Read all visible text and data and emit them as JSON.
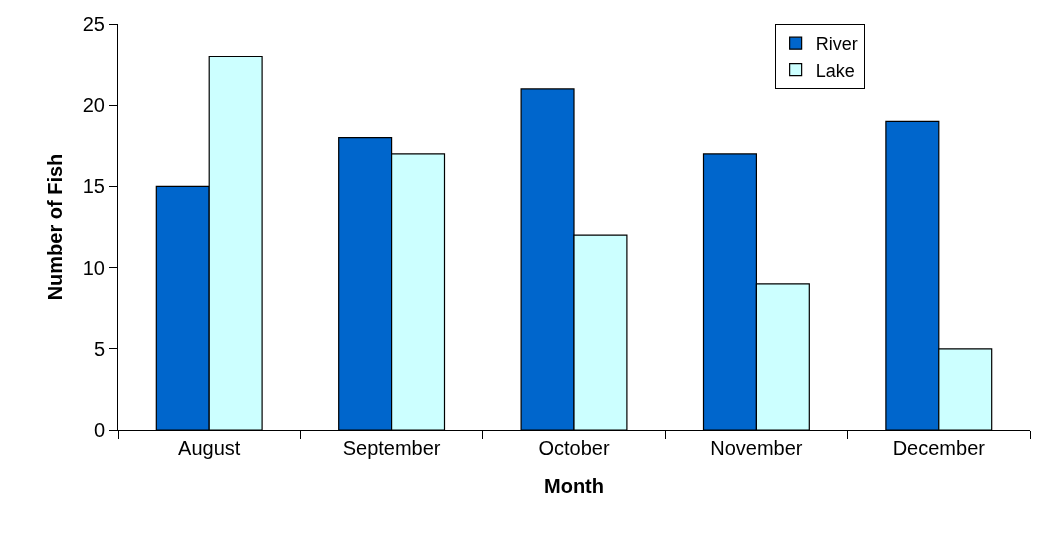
{
  "chart_data": {
    "type": "bar",
    "xlabel": "Month",
    "ylabel": "Number of Fish",
    "categories": [
      "August",
      "September",
      "October",
      "November",
      "December"
    ],
    "series": [
      {
        "name": "River",
        "color": "#0066cc",
        "values": [
          15,
          18,
          21,
          17,
          19
        ]
      },
      {
        "name": "Lake",
        "color": "#ccffff",
        "values": [
          23,
          17,
          12,
          9,
          5
        ]
      }
    ],
    "ylim": [
      0,
      25
    ],
    "yticks": [
      0,
      5,
      10,
      15,
      20,
      25
    ],
    "grid": false,
    "legend": "top right"
  }
}
